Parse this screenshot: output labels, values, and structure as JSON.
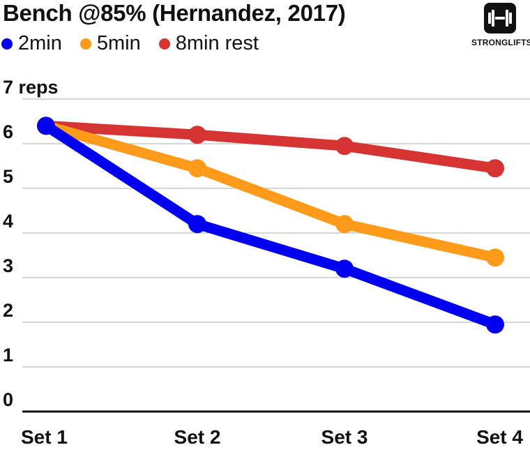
{
  "title": "Bench @85% (Hernandez, 2017)",
  "logo": {
    "text": "STRONGLIFTS",
    "icon": "barbell-icon"
  },
  "chart_data": {
    "type": "line",
    "title": "Bench @85% (Hernandez, 2017)",
    "xlabel": "",
    "ylabel": "",
    "categories": [
      "Set 1",
      "Set 2",
      "Set 3",
      "Set 4"
    ],
    "y_ticks": [
      "0",
      "1",
      "2",
      "3",
      "4",
      "5",
      "6",
      "7 reps"
    ],
    "ylim": [
      0,
      7
    ],
    "grid": true,
    "legend_position": "top-left",
    "series": [
      {
        "name": "2min",
        "color": "#0000ee",
        "values": [
          6.4,
          4.2,
          3.2,
          1.95
        ]
      },
      {
        "name": "5min",
        "color": "#ff9a1a",
        "values": [
          6.4,
          5.45,
          4.2,
          3.45
        ]
      },
      {
        "name": "8min rest",
        "color": "#d63333",
        "values": [
          6.4,
          6.2,
          5.95,
          5.45
        ]
      }
    ]
  }
}
